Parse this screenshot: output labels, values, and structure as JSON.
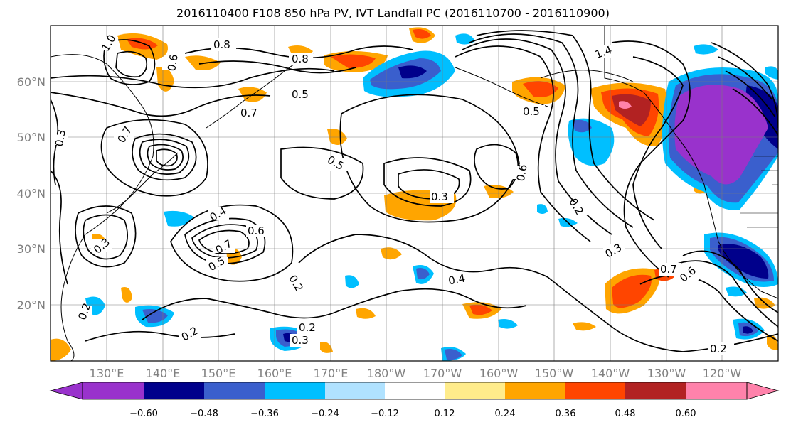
{
  "title": "2016110400 F108 850 hPa PV, IVT Landfall PC (2016110700 - 2016110900)",
  "map": {
    "lon_labels": [
      "130°E",
      "140°E",
      "150°E",
      "160°E",
      "170°E",
      "180°W",
      "170°W",
      "160°W",
      "150°W",
      "140°W",
      "130°W",
      "120°W"
    ],
    "lat_labels": [
      "60°N",
      "50°N",
      "40°N",
      "30°N",
      "20°N"
    ],
    "contour_labels": [
      "1.0",
      "0.8",
      "0.8",
      "0.7",
      "0.5",
      "0.5",
      "0.5",
      "0.3",
      "0.3",
      "0.4",
      "0.6",
      "0.7",
      "0.5",
      "0.2",
      "0.2",
      "0.2",
      "0.3",
      "0.4",
      "0.6",
      "0.3",
      "0.2",
      "0.7",
      "0.6",
      "0.2",
      "1.4",
      "0.6",
      "0.3",
      "0.7",
      "0.2"
    ]
  },
  "colorbar": {
    "tick_labels": [
      "−0.60",
      "−0.48",
      "−0.36",
      "−0.24",
      "−0.12",
      "0.12",
      "0.24",
      "0.36",
      "0.48",
      "0.60"
    ],
    "colors": [
      "#9932cc",
      "#00008b",
      "#3a5fcd",
      "#00bfff",
      "#b0e2ff",
      "#ffffff",
      "#ffec8b",
      "#ffa500",
      "#ff4500",
      "#b22222",
      "#ff82ab"
    ]
  }
}
